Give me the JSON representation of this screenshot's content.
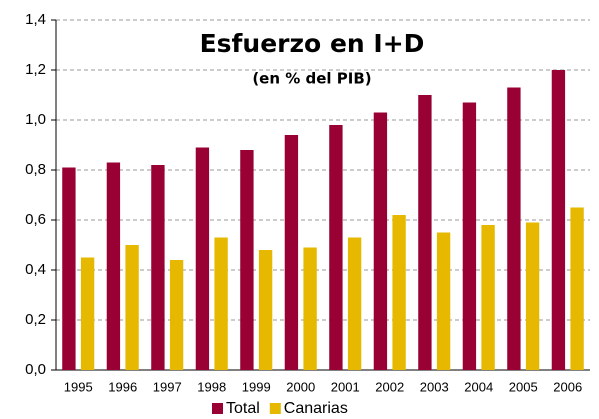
{
  "chart_data": {
    "type": "bar",
    "title": "Esfuerzo en I+D",
    "subtitle": "(en % del PIB)",
    "categories": [
      "1995",
      "1996",
      "1997",
      "1998",
      "1999",
      "2000",
      "2001",
      "2002",
      "2003",
      "2004",
      "2005",
      "2006"
    ],
    "series": [
      {
        "name": "Total",
        "color": "#990033",
        "values": [
          0.81,
          0.83,
          0.82,
          0.89,
          0.88,
          0.94,
          0.98,
          1.03,
          1.1,
          1.07,
          1.13,
          1.2
        ]
      },
      {
        "name": "Canarias",
        "color": "#e6b800",
        "values": [
          0.45,
          0.5,
          0.44,
          0.53,
          0.48,
          0.49,
          0.53,
          0.62,
          0.55,
          0.58,
          0.59,
          0.65
        ]
      }
    ],
    "ylim": [
      0,
      1.4
    ],
    "yticks": [
      {
        "value": 0,
        "label": "0,0"
      },
      {
        "value": 0.2,
        "label": "0,2"
      },
      {
        "value": 0.4,
        "label": "0,4"
      },
      {
        "value": 0.6,
        "label": "0,6"
      },
      {
        "value": 0.8,
        "label": "0,8"
      },
      {
        "value": 1.0,
        "label": "1,0"
      },
      {
        "value": 1.2,
        "label": "1,2"
      },
      {
        "value": 1.4,
        "label": "1,4"
      }
    ],
    "grid": true,
    "legend": "bottom"
  }
}
